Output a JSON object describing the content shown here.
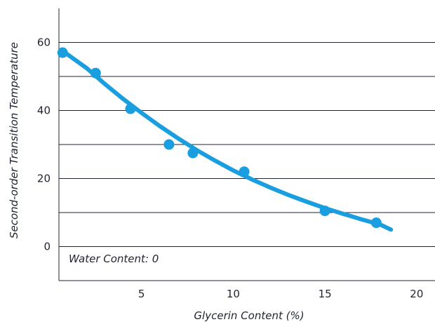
{
  "chart_data": {
    "type": "scatter",
    "title": "",
    "xlabel": "Glycerin Content (%)",
    "ylabel": "Second-order Transition Temperature",
    "xlim": [
      0.5,
      21
    ],
    "ylim": [
      -10,
      70
    ],
    "x_ticks": [
      5,
      10,
      15,
      20
    ],
    "x_tick_labels": [
      "5",
      "10",
      "15",
      "20"
    ],
    "y_ticks": [
      0,
      20,
      40,
      60
    ],
    "y_tick_labels": [
      "0",
      "20",
      "40",
      "60"
    ],
    "grid_y": [
      0,
      10,
      20,
      30,
      40,
      50,
      60
    ],
    "annotation": "Water Content: 0",
    "accent_color": "#199ee0",
    "series": [
      {
        "points": [
          {
            "x": 0.7,
            "y": 57
          },
          {
            "x": 2.5,
            "y": 51
          },
          {
            "x": 4.4,
            "y": 40.5
          },
          {
            "x": 6.5,
            "y": 30
          },
          {
            "x": 7.8,
            "y": 27.5
          },
          {
            "x": 10.6,
            "y": 22
          },
          {
            "x": 15.0,
            "y": 10.5
          },
          {
            "x": 17.8,
            "y": 7
          }
        ],
        "trend": [
          {
            "x": 0.7,
            "y": 57.5
          },
          {
            "x": 2.0,
            "y": 52.5
          },
          {
            "x": 3.0,
            "y": 47.8
          },
          {
            "x": 4.0,
            "y": 43.4
          },
          {
            "x": 5.0,
            "y": 39.3
          },
          {
            "x": 6.0,
            "y": 35.4
          },
          {
            "x": 7.0,
            "y": 31.8
          },
          {
            "x": 8.0,
            "y": 28.4
          },
          {
            "x": 9.0,
            "y": 25.3
          },
          {
            "x": 10.0,
            "y": 22.4
          },
          {
            "x": 11.0,
            "y": 19.8
          },
          {
            "x": 12.0,
            "y": 17.4
          },
          {
            "x": 13.0,
            "y": 15.2
          },
          {
            "x": 14.0,
            "y": 13.2
          },
          {
            "x": 15.0,
            "y": 11.3
          },
          {
            "x": 16.0,
            "y": 9.6
          },
          {
            "x": 17.0,
            "y": 8.0
          },
          {
            "x": 18.0,
            "y": 6.5
          },
          {
            "x": 18.6,
            "y": 5.0
          }
        ]
      }
    ]
  }
}
